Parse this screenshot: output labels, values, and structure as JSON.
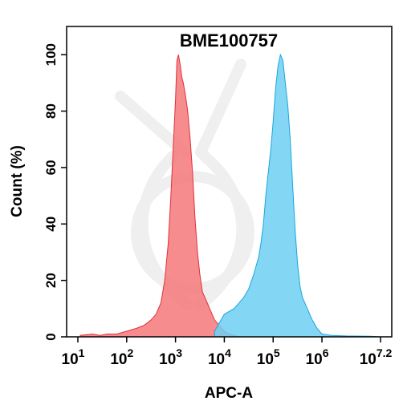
{
  "chart_data": {
    "type": "area",
    "title": "BME100757",
    "xlabel": "APC-A",
    "ylabel": "Count  (%)",
    "xscale": "log",
    "xlim": [
      1,
      7.2
    ],
    "ylim": [
      0,
      110
    ],
    "grid": false,
    "x_ticks": [
      {
        "value": 1,
        "base": "10",
        "exp": "1"
      },
      {
        "value": 2,
        "base": "10",
        "exp": "2"
      },
      {
        "value": 3,
        "base": "10",
        "exp": "3"
      },
      {
        "value": 4,
        "base": "10",
        "exp": "4"
      },
      {
        "value": 5,
        "base": "10",
        "exp": "5"
      },
      {
        "value": 6,
        "base": "10",
        "exp": "6"
      },
      {
        "value": 7.2,
        "base": "10",
        "exp": "7.2"
      }
    ],
    "y_ticks": [
      "0",
      "20",
      "40",
      "60",
      "80",
      "100"
    ],
    "series": [
      {
        "color": "#f4787a",
        "stroke": "#e0303a",
        "x": [
          1.05,
          1.3,
          1.45,
          1.6,
          1.8,
          2.0,
          2.2,
          2.35,
          2.5,
          2.6,
          2.7,
          2.78,
          2.85,
          2.9,
          2.95,
          3.0,
          3.03,
          3.06,
          3.1,
          3.13,
          3.16,
          3.2,
          3.25,
          3.3,
          3.35,
          3.4,
          3.45,
          3.5,
          3.55,
          3.6,
          3.7,
          3.8,
          3.9,
          4.0,
          4.1,
          4.3
        ],
        "y": [
          0.5,
          1,
          0.5,
          1,
          1,
          2,
          3,
          4,
          6,
          8,
          12,
          20,
          33,
          48,
          66,
          84,
          98,
          100,
          96,
          92,
          90,
          86,
          80,
          70,
          58,
          42,
          30,
          22,
          16,
          14,
          10,
          6,
          4,
          2,
          1,
          0
        ]
      },
      {
        "color": "#6dd0f2",
        "stroke": "#1aa6dc",
        "x": [
          3.8,
          3.9,
          4.0,
          4.1,
          4.2,
          4.3,
          4.4,
          4.5,
          4.6,
          4.65,
          4.7,
          4.75,
          4.8,
          4.85,
          4.9,
          4.95,
          5.0,
          5.05,
          5.1,
          5.15,
          5.2,
          5.25,
          5.3,
          5.35,
          5.4,
          5.45,
          5.5,
          5.55,
          5.6,
          5.7,
          5.8,
          5.9,
          6.0,
          6.2,
          6.5,
          7.0,
          7.2
        ],
        "y": [
          2,
          5,
          8,
          9,
          10,
          12,
          14,
          17,
          22,
          25,
          28,
          33,
          40,
          50,
          58,
          66,
          76,
          88,
          96,
          100,
          98,
          90,
          82,
          70,
          54,
          38,
          26,
          18,
          14,
          10,
          6,
          3,
          1,
          0.5,
          0.3,
          0.2,
          0
        ]
      }
    ]
  }
}
